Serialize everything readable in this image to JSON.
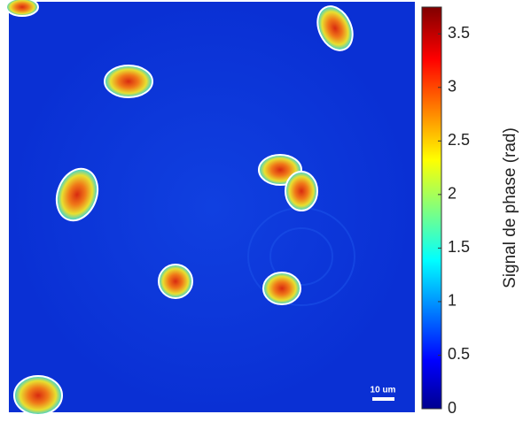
{
  "chart_data": {
    "type": "image",
    "colorbar_label": "Signal de phase (rad)",
    "clim": [
      0,
      3.75
    ],
    "cticks": [
      0,
      0.5,
      1,
      1.5,
      2,
      2.5,
      3,
      3.5
    ],
    "scale_bar_label": "10 um"
  }
}
